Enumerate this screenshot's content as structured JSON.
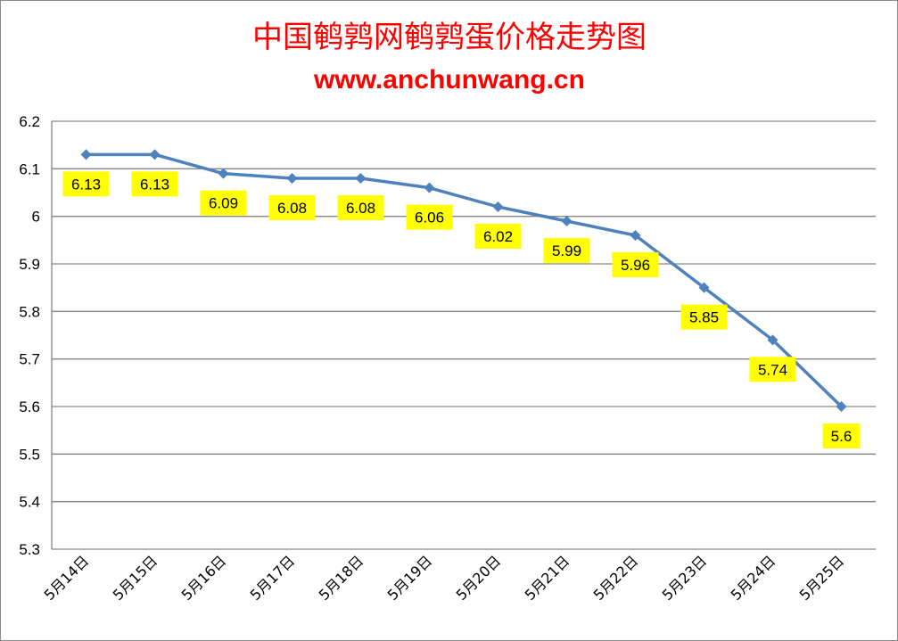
{
  "colors": {
    "title": "#ff0000",
    "series_line": "#4f81bd",
    "gridline": "#868686",
    "label_bg": "#ffff00",
    "background": "#ffffff"
  },
  "chart_data": {
    "type": "line",
    "title": "中国鹌鹑网鹌鹑蛋价格走势图",
    "subtitle": "www.anchunwang.cn",
    "xlabel": "",
    "ylabel": "",
    "categories": [
      "5月14日",
      "5月15日",
      "5月16日",
      "5月17日",
      "5月18日",
      "5月19日",
      "5月20日",
      "5月21日",
      "5月22日",
      "5月23日",
      "5月24日",
      "5月25日"
    ],
    "series": [
      {
        "values": [
          6.13,
          6.13,
          6.09,
          6.08,
          6.08,
          6.06,
          6.02,
          5.99,
          5.96,
          5.85,
          5.74,
          5.6
        ],
        "data_labels": [
          "6.13",
          "6.13",
          "6.09",
          "6.08",
          "6.08",
          "6.06",
          "6.02",
          "5.99",
          "5.96",
          "5.85",
          "5.74",
          "5.6"
        ]
      }
    ],
    "yticks": [
      "5.3",
      "5.4",
      "5.5",
      "5.6",
      "5.7",
      "5.8",
      "5.9",
      "6",
      "6.1",
      "6.2"
    ],
    "ylim": [
      5.3,
      6.2
    ],
    "grid": true,
    "legend": "none",
    "marker": "diamond",
    "data_label_position": "below"
  }
}
